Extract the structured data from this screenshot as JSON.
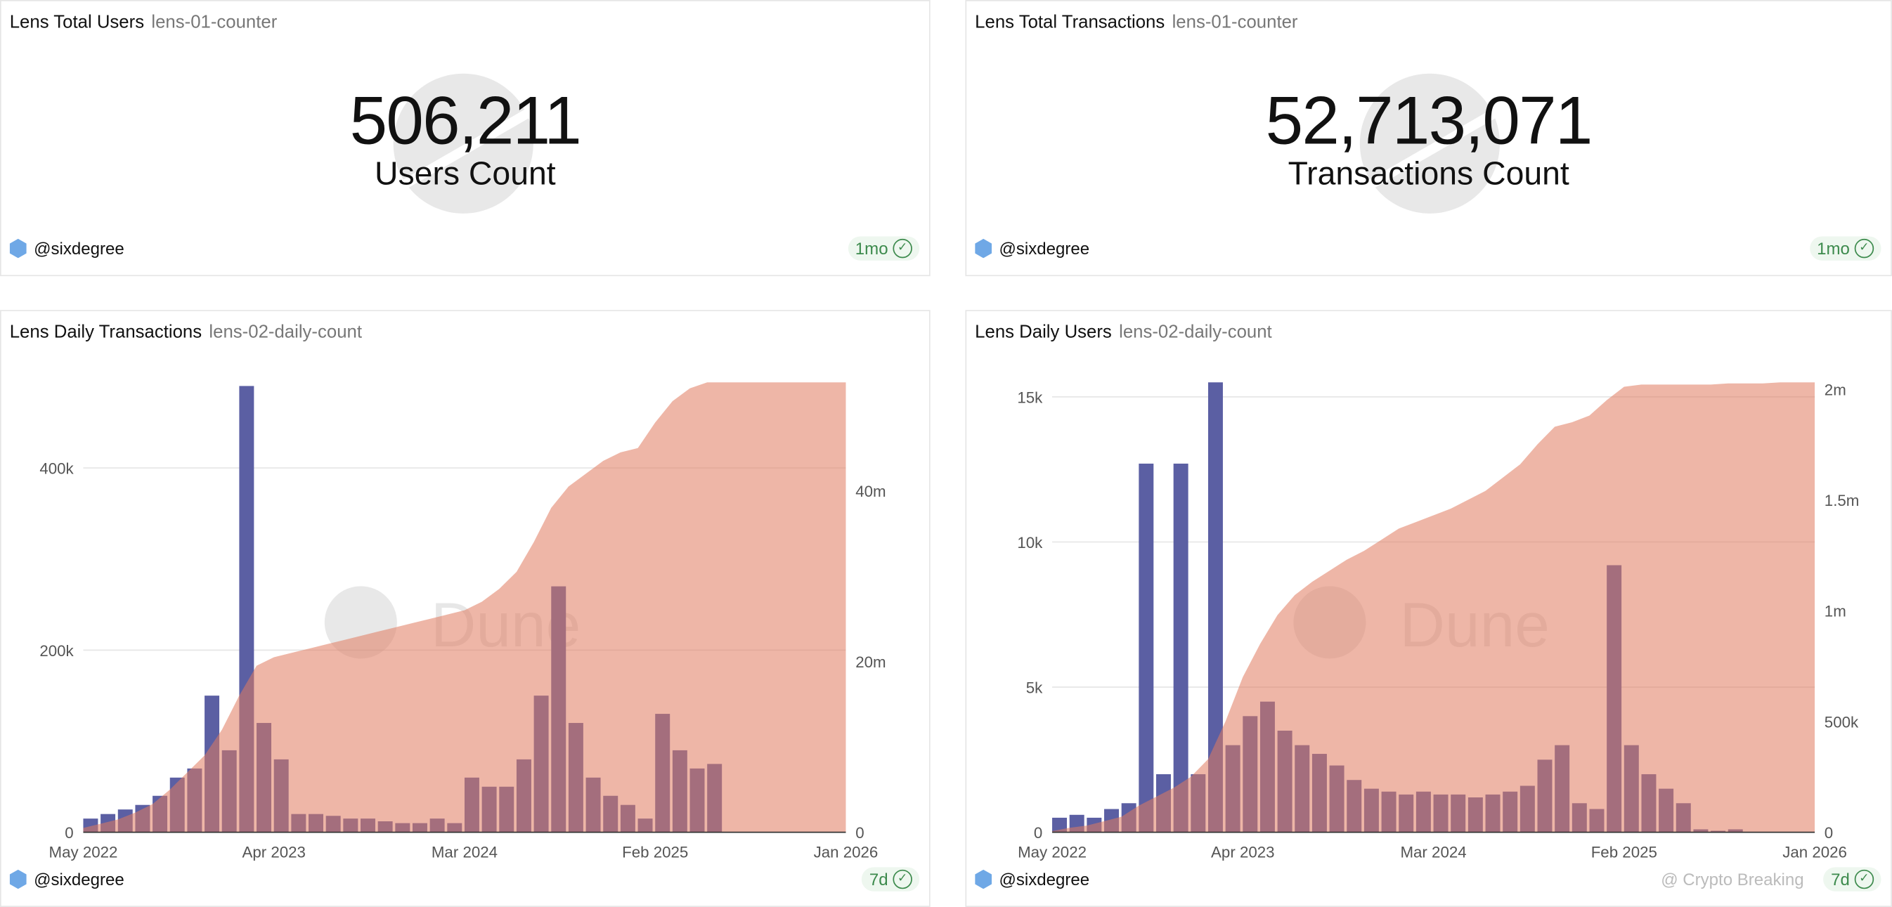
{
  "cards": {
    "total_users": {
      "title": "Lens Total Users",
      "subtitle": "lens-01-counter",
      "value": "506,211",
      "label": "Users Count",
      "author": "@sixdegree",
      "age": "1mo"
    },
    "total_tx": {
      "title": "Lens Total Transactions",
      "subtitle": "lens-01-counter",
      "value": "52,713,071",
      "label": "Transactions Count",
      "author": "@sixdegree",
      "age": "1mo"
    },
    "daily_tx": {
      "title": "Lens Daily Transactions",
      "subtitle": "lens-02-daily-count",
      "author": "@sixdegree",
      "age": "7d"
    },
    "daily_users": {
      "title": "Lens Daily Users",
      "subtitle": "lens-02-daily-count",
      "author": "@sixdegree",
      "age": "7d"
    }
  },
  "watermark": "Dune",
  "credit": "@ Crypto Breaking",
  "colors": {
    "bars": "#5b5fa3",
    "area": "#e07a5f",
    "grid": "#e6e6e6"
  },
  "chart_data": [
    {
      "type": "bar+area",
      "x_range": [
        "May 2022",
        "Jan 2026"
      ],
      "x_ticks": [
        "May 2022",
        "Apr 2023",
        "Mar 2024",
        "Feb 2025",
        "Jan 2026"
      ],
      "y_left": {
        "ticks": [
          "0",
          "200k",
          "400k"
        ],
        "range": [
          0,
          494000
        ]
      },
      "y_right": {
        "ticks": [
          "0",
          "20m",
          "40m"
        ],
        "range": [
          0,
          52700000
        ]
      },
      "x_months": [
        "2022-05",
        "2022-06",
        "2022-07",
        "2022-08",
        "2022-09",
        "2022-10",
        "2022-11",
        "2022-12",
        "2023-01",
        "2023-02",
        "2023-03",
        "2023-04",
        "2023-05",
        "2023-06",
        "2023-07",
        "2023-08",
        "2023-09",
        "2023-10",
        "2023-11",
        "2023-12",
        "2024-01",
        "2024-02",
        "2024-03",
        "2024-04",
        "2024-05",
        "2024-06",
        "2024-07",
        "2024-08",
        "2024-09",
        "2024-10",
        "2024-11",
        "2024-12",
        "2025-01",
        "2025-02",
        "2025-03",
        "2025-04",
        "2025-05",
        "2025-06",
        "2025-07",
        "2025-08",
        "2025-09",
        "2025-10",
        "2025-11",
        "2025-12",
        "2026-01"
      ],
      "series": [
        {
          "axis": "left",
          "kind": "bar",
          "values": [
            15000,
            20000,
            25000,
            30000,
            40000,
            60000,
            70000,
            150000,
            90000,
            490000,
            120000,
            80000,
            20000,
            20000,
            18000,
            15000,
            15000,
            12000,
            10000,
            10000,
            15000,
            10000,
            60000,
            50000,
            50000,
            80000,
            150000,
            270000,
            120000,
            60000,
            40000,
            30000,
            15000,
            130000,
            90000,
            70000,
            75000,
            0,
            0,
            0,
            0,
            0,
            0,
            0,
            0
          ]
        },
        {
          "axis": "right",
          "kind": "area",
          "values": [
            500000,
            1000000,
            1500000,
            2300000,
            3300000,
            5000000,
            7000000,
            9000000,
            12000000,
            16000000,
            19500000,
            20500000,
            21000000,
            21500000,
            22000000,
            22500000,
            23000000,
            23500000,
            24000000,
            24500000,
            25000000,
            25500000,
            26000000,
            27000000,
            28500000,
            30500000,
            34000000,
            38000000,
            40500000,
            42000000,
            43500000,
            44500000,
            45000000,
            48000000,
            50500000,
            52000000,
            52700000,
            52700000,
            52700000,
            52700000,
            52700000,
            52700000,
            52700000,
            52700000,
            52700000
          ]
        }
      ]
    },
    {
      "type": "bar+area",
      "x_range": [
        "May 2022",
        "Jan 2026"
      ],
      "x_ticks": [
        "May 2022",
        "Apr 2023",
        "Mar 2024",
        "Feb 2025",
        "Jan 2026"
      ],
      "y_left": {
        "ticks": [
          "0",
          "5k",
          "10k",
          "15k"
        ],
        "range": [
          0,
          15500
        ]
      },
      "y_right": {
        "ticks": [
          "0",
          "500k",
          "1m",
          "1.5m",
          "2m"
        ],
        "range": [
          0,
          2030000
        ]
      },
      "series": [
        {
          "axis": "left",
          "kind": "bar",
          "values": [
            500,
            600,
            500,
            800,
            1000,
            12700,
            2000,
            12700,
            2000,
            15500,
            3000,
            4000,
            4500,
            3500,
            3000,
            2700,
            2300,
            1800,
            1500,
            1400,
            1300,
            1400,
            1300,
            1300,
            1200,
            1300,
            1400,
            1600,
            2500,
            3000,
            1000,
            800,
            9200,
            3000,
            2000,
            1500,
            1000,
            100,
            50,
            100,
            0,
            0,
            0,
            0,
            0
          ]
        },
        {
          "axis": "right",
          "kind": "area",
          "values": [
            5000,
            20000,
            30000,
            50000,
            70000,
            120000,
            160000,
            200000,
            250000,
            330000,
            500000,
            700000,
            850000,
            980000,
            1070000,
            1130000,
            1180000,
            1230000,
            1270000,
            1320000,
            1370000,
            1400000,
            1430000,
            1460000,
            1500000,
            1540000,
            1600000,
            1660000,
            1750000,
            1830000,
            1850000,
            1880000,
            1950000,
            2010000,
            2020000,
            2020000,
            2020000,
            2020000,
            2020000,
            2025000,
            2025000,
            2025000,
            2030000,
            2030000,
            2030000
          ]
        }
      ]
    }
  ]
}
